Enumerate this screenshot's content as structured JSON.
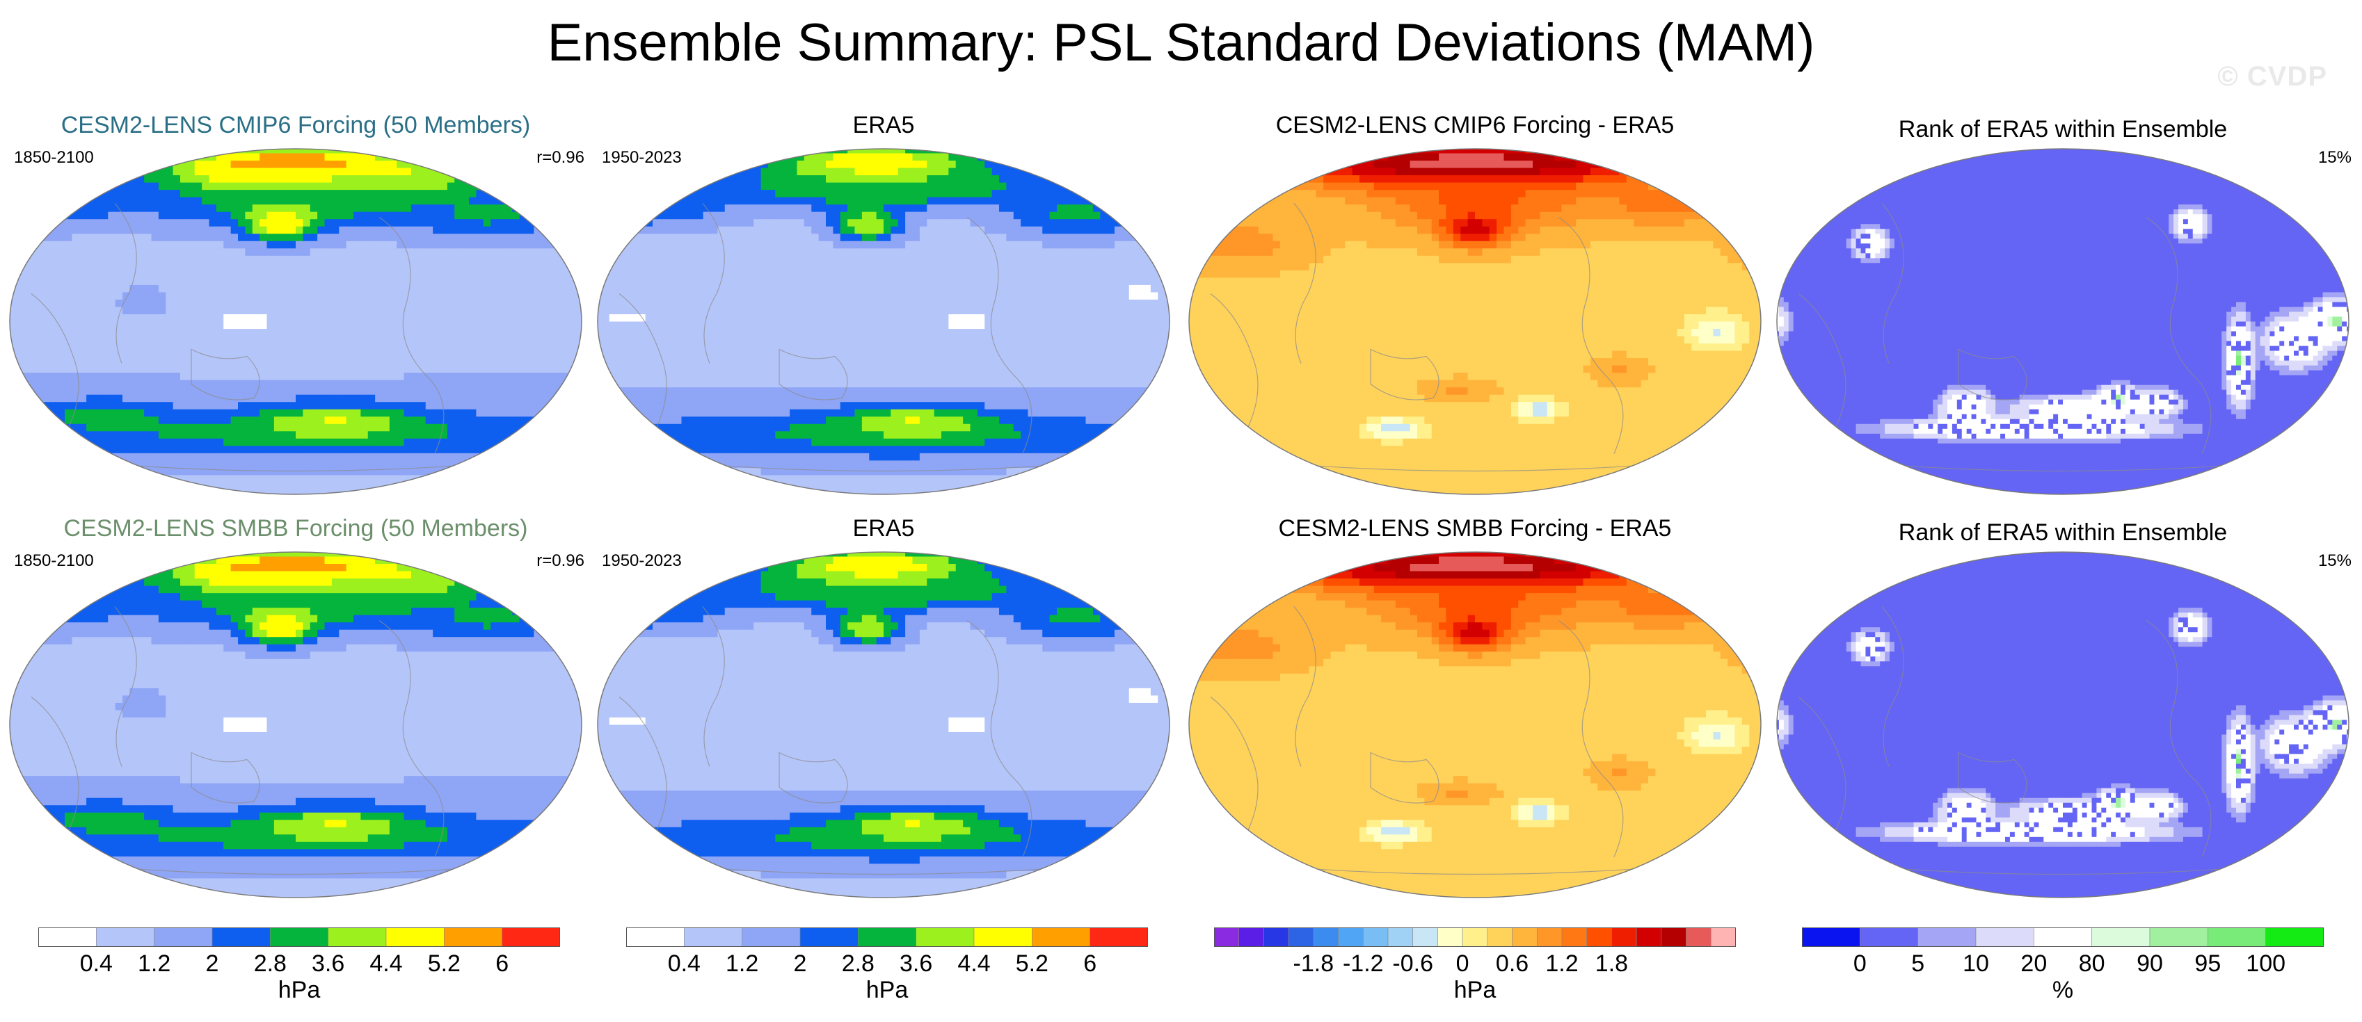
{
  "figure": {
    "title": "Ensemble Summary: PSL Standard Deviations (MAM)",
    "watermark": "© CVDP"
  },
  "rows": [
    {
      "panels": [
        {
          "title": "CESM2-LENS CMIP6 Forcing (50 Members)",
          "title_color": "#2a6f86",
          "period": "1850-2100",
          "stat": "r=0.96",
          "field": "model_sd",
          "colorbar": "sd"
        },
        {
          "title": "ERA5",
          "title_color": "#000000",
          "period": "1950-2023",
          "stat": "",
          "field": "obs_sd",
          "colorbar": "sd"
        },
        {
          "title": "CESM2-LENS CMIP6 Forcing - ERA5",
          "title_color": "#000000",
          "period": "",
          "stat": "",
          "field": "difference",
          "colorbar": "diff"
        },
        {
          "title": "Rank of ERA5 within Ensemble",
          "title_color": "#000000",
          "period": "",
          "stat": "15%",
          "field": "rank",
          "colorbar": "rank"
        }
      ]
    },
    {
      "panels": [
        {
          "title": "CESM2-LENS SMBB Forcing (50 Members)",
          "title_color": "#6b8f6b",
          "period": "1850-2100",
          "stat": "r=0.96",
          "field": "model_sd",
          "colorbar": "sd"
        },
        {
          "title": "ERA5",
          "title_color": "#000000",
          "period": "1950-2023",
          "stat": "",
          "field": "obs_sd",
          "colorbar": "sd"
        },
        {
          "title": "CESM2-LENS SMBB Forcing - ERA5",
          "title_color": "#000000",
          "period": "",
          "stat": "",
          "field": "difference",
          "colorbar": "diff"
        },
        {
          "title": "Rank of ERA5 within Ensemble",
          "title_color": "#000000",
          "period": "",
          "stat": "15%",
          "field": "rank",
          "colorbar": "rank"
        }
      ]
    }
  ],
  "chart_data": {
    "type": "heatmap",
    "projection": "Robinson (Pacific-centered)",
    "colorbars": {
      "sd": {
        "unit": "hPa",
        "colors": [
          "#ffffff",
          "#b4c5fa",
          "#8fa5f5",
          "#0e5ff0",
          "#05b43c",
          "#9cf01e",
          "#ffff00",
          "#ffa000",
          "#ff2814"
        ],
        "boundaries": [
          0.4,
          1.2,
          2,
          2.8,
          3.6,
          4.4,
          5.2,
          6
        ],
        "tick_labels": [
          "0.4",
          "1.2",
          "2",
          "2.8",
          "3.6",
          "4.4",
          "5.2",
          "6"
        ]
      },
      "diff": {
        "unit": "hPa",
        "colors": [
          "#8a2be2",
          "#5a1ee6",
          "#2837e6",
          "#2d64e6",
          "#3c8cf0",
          "#50a5f5",
          "#78bef5",
          "#a0d2f5",
          "#c8e6f5",
          "#ffffc8",
          "#fff08c",
          "#ffd25a",
          "#ffb43c",
          "#ff9628",
          "#ff7814",
          "#ff5000",
          "#f01e00",
          "#d20000",
          "#b40000",
          "#e65a5a",
          "#ffb4b4"
        ],
        "boundaries": [
          -1.8,
          -1.5,
          -1.2,
          -0.9,
          -0.6,
          -0.3,
          0,
          0.3,
          0.6,
          0.9,
          1.2,
          1.5,
          1.8
        ],
        "tick_labels": [
          "-1.8",
          "-1.2",
          "-0.6",
          "0",
          "0.6",
          "1.2",
          "1.8"
        ]
      },
      "rank": {
        "unit": "%",
        "colors": [
          "#0a14f0",
          "#6464f5",
          "#a5a5f5",
          "#dcdcfa",
          "#ffffff",
          "#dcfadc",
          "#a0f0a0",
          "#78eb78",
          "#14eb14"
        ],
        "boundaries": [
          0,
          5,
          10,
          20,
          80,
          90,
          95,
          100
        ],
        "tick_labels": [
          "0",
          "5",
          "10",
          "20",
          "80",
          "90",
          "95",
          "100"
        ]
      }
    },
    "fields": {
      "model_sd": {
        "background": 1.0,
        "blobs": [
          {
            "lon": 180,
            "lat": 78,
            "rlon": 90,
            "rlat": 14,
            "value": 6.5
          },
          {
            "lon": 160,
            "lat": 75,
            "rlon": 35,
            "rlat": 9,
            "value": 5.4
          },
          {
            "lon": 240,
            "lat": 72,
            "rlon": 55,
            "rlat": 10,
            "value": 4.8
          },
          {
            "lon": 185,
            "lat": 60,
            "rlon": 100,
            "rlat": 13,
            "value": 3.2
          },
          {
            "lon": 170,
            "lat": 50,
            "rlon": 22,
            "rlat": 9,
            "value": 5.2
          },
          {
            "lon": 300,
            "lat": 55,
            "rlon": 45,
            "rlat": 12,
            "value": 3.0
          },
          {
            "lon": 20,
            "lat": 62,
            "rlon": 55,
            "rlat": 12,
            "value": 3.0
          },
          {
            "lon": 180,
            "lat": -57,
            "rlon": 210,
            "rlat": 14,
            "value": 3.1
          },
          {
            "lon": 205,
            "lat": -50,
            "rlon": 45,
            "rlat": 9,
            "value": 4.6
          },
          {
            "lon": 60,
            "lat": -47,
            "rlon": 35,
            "rlat": 7,
            "value": 3.8
          },
          {
            "lon": 0,
            "lat": -38,
            "rlon": 240,
            "rlat": 8,
            "value": 2.0
          },
          {
            "lon": 150,
            "lat": 0,
            "rlon": 35,
            "rlat": 5,
            "value": 0.2
          },
          {
            "lon": 85,
            "lat": 10,
            "rlon": 15,
            "rlat": 8,
            "value": 1.6
          }
        ]
      },
      "obs_sd": {
        "background": 0.9,
        "blobs": [
          {
            "lon": 175,
            "lat": 80,
            "rlon": 70,
            "rlat": 12,
            "value": 5.5
          },
          {
            "lon": 180,
            "lat": 68,
            "rlon": 110,
            "rlat": 10,
            "value": 3.6
          },
          {
            "lon": 170,
            "lat": 50,
            "rlon": 22,
            "rlat": 9,
            "value": 4.4
          },
          {
            "lon": 300,
            "lat": 55,
            "rlon": 45,
            "rlat": 12,
            "value": 3.0
          },
          {
            "lon": 30,
            "lat": 60,
            "rlon": 55,
            "rlat": 12,
            "value": 2.9
          },
          {
            "lon": 180,
            "lat": -58,
            "rlon": 210,
            "rlat": 14,
            "value": 3.0
          },
          {
            "lon": 200,
            "lat": -50,
            "rlon": 45,
            "rlat": 9,
            "value": 4.6
          },
          {
            "lon": 0,
            "lat": -40,
            "rlon": 240,
            "rlat": 7,
            "value": 1.9
          },
          {
            "lon": 230,
            "lat": 0,
            "rlon": 40,
            "rlat": 6,
            "value": 0.3
          },
          {
            "lon": 20,
            "lat": 2,
            "rlon": 30,
            "rlat": 6,
            "value": 0.3
          },
          {
            "lon": 340,
            "lat": 15,
            "rlon": 30,
            "rlat": 6,
            "value": 0.3
          }
        ]
      },
      "difference": {
        "background": 0.25,
        "blobs": [
          {
            "lon": 180,
            "lat": 80,
            "rlon": 110,
            "rlat": 12,
            "value": 2.0
          },
          {
            "lon": 180,
            "lat": 50,
            "rlon": 20,
            "rlat": 10,
            "value": 1.9
          },
          {
            "lon": 185,
            "lat": 62,
            "rlon": 70,
            "rlat": 16,
            "value": 0.9
          },
          {
            "lon": 300,
            "lat": 60,
            "rlon": 45,
            "rlat": 10,
            "value": 0.8
          },
          {
            "lon": 30,
            "lat": 40,
            "rlon": 40,
            "rlat": 12,
            "value": 0.6
          },
          {
            "lon": 220,
            "lat": -45,
            "rlon": 15,
            "rlat": 6,
            "value": -0.4
          },
          {
            "lon": 130,
            "lat": -55,
            "rlon": 20,
            "rlat": 6,
            "value": -0.4
          },
          {
            "lon": 330,
            "lat": -5,
            "rlon": 20,
            "rlat": 10,
            "value": -0.3
          },
          {
            "lon": 170,
            "lat": -35,
            "rlon": 20,
            "rlat": 5,
            "value": 0.5
          },
          {
            "lon": 20,
            "lat": -55,
            "rlon": 15,
            "rlat": 5,
            "value": -0.4
          },
          {
            "lon": 270,
            "lat": -25,
            "rlon": 15,
            "rlat": 6,
            "value": 0.5
          }
        ]
      },
      "rank": {
        "background": 2.0,
        "blobs": [
          {
            "lon": 120,
            "lat": -45,
            "rlon": 12,
            "rlat": 8,
            "value": 60
          },
          {
            "lon": 190,
            "lat": -45,
            "rlon": 30,
            "rlat": 5,
            "value": 60
          },
          {
            "lon": 215,
            "lat": -40,
            "rlon": 10,
            "rlat": 5,
            "value": 97
          },
          {
            "lon": 240,
            "lat": -42,
            "rlon": 10,
            "rlat": 5,
            "value": 60
          },
          {
            "lon": 290,
            "lat": -20,
            "rlon": 6,
            "rlat": 16,
            "value": 97
          },
          {
            "lon": 325,
            "lat": -10,
            "rlon": 15,
            "rlat": 10,
            "value": 60
          },
          {
            "lon": 350,
            "lat": 0,
            "rlon": 12,
            "rlat": 8,
            "value": 97
          },
          {
            "lon": 60,
            "lat": 40,
            "rlon": 8,
            "rlat": 6,
            "value": 60
          },
          {
            "lon": 260,
            "lat": 50,
            "rlon": 8,
            "rlat": 6,
            "value": 60
          },
          {
            "lon": 160,
            "lat": -55,
            "rlon": 60,
            "rlat": 4,
            "value": 85
          }
        ]
      }
    }
  }
}
